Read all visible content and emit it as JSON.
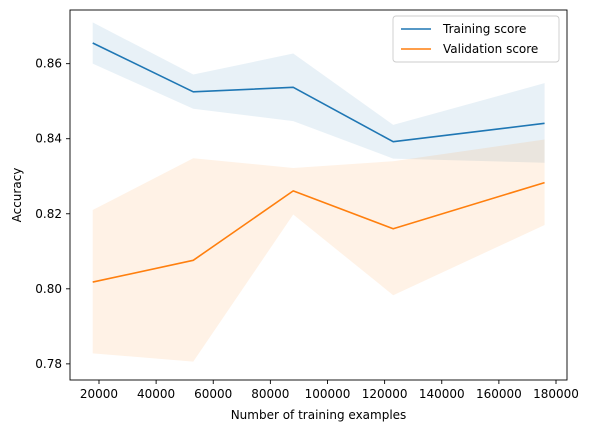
{
  "chart_data": {
    "type": "line",
    "title": "",
    "xlabel": "Number of training examples",
    "ylabel": "Accuracy",
    "xlim": [
      9850,
      183850
    ],
    "ylim": [
      0.7757,
      0.8743
    ],
    "grid": false,
    "legend_placement": "top-right",
    "xticks": [
      20000,
      40000,
      60000,
      80000,
      100000,
      120000,
      140000,
      160000,
      180000
    ],
    "xtick_labels": [
      "20000",
      "40000",
      "60000",
      "80000",
      "100000",
      "120000",
      "140000",
      "160000",
      "180000"
    ],
    "yticks": [
      0.78,
      0.8,
      0.82,
      0.84,
      0.86
    ],
    "ytick_labels": [
      "0.78",
      "0.80",
      "0.82",
      "0.84",
      "0.86"
    ],
    "x": [
      17800,
      53000,
      88000,
      123000,
      176000
    ],
    "series": [
      {
        "name": "Training score",
        "color": "#1f77b4",
        "values": [
          0.8655,
          0.8525,
          0.8537,
          0.8392,
          0.8441
        ],
        "lower": [
          0.86,
          0.848,
          0.8447,
          0.8347,
          0.8336
        ],
        "upper": [
          0.871,
          0.8571,
          0.8627,
          0.8437,
          0.8548
        ]
      },
      {
        "name": "Validation score",
        "color": "#ff7f0e",
        "values": [
          0.8018,
          0.8076,
          0.8261,
          0.816,
          0.8283
        ],
        "lower": [
          0.7828,
          0.7806,
          0.8198,
          0.7983,
          0.817
        ],
        "upper": [
          0.821,
          0.8348,
          0.8322,
          0.834,
          0.8398
        ]
      }
    ]
  }
}
